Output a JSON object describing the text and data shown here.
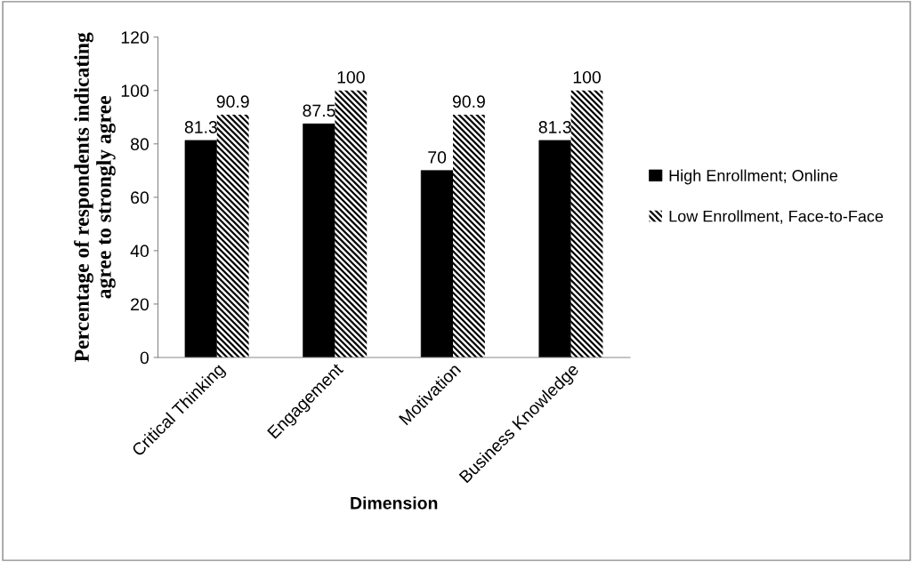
{
  "chart_data": {
    "type": "bar",
    "xlabel": "Dimension",
    "ylabel": "Percentage of respondents indicating\nagree to strongly agree",
    "categories": [
      "Critical Thinking",
      "Engagement",
      "Motivation",
      "Business Knowledge"
    ],
    "series": [
      {
        "name": "High Enrollment; Online",
        "color": "#000000",
        "values": [
          81.3,
          87.5,
          70,
          81.3
        ]
      },
      {
        "name": "Low Enrollment, Face-to-Face",
        "color": "#000000",
        "values": [
          90.9,
          100,
          90.9,
          100
        ]
      }
    ],
    "ylim": [
      0,
      120
    ],
    "yticks": [
      0,
      20,
      40,
      60,
      80,
      100,
      120
    ],
    "data_labels": true,
    "legend": "right",
    "grid": false
  }
}
